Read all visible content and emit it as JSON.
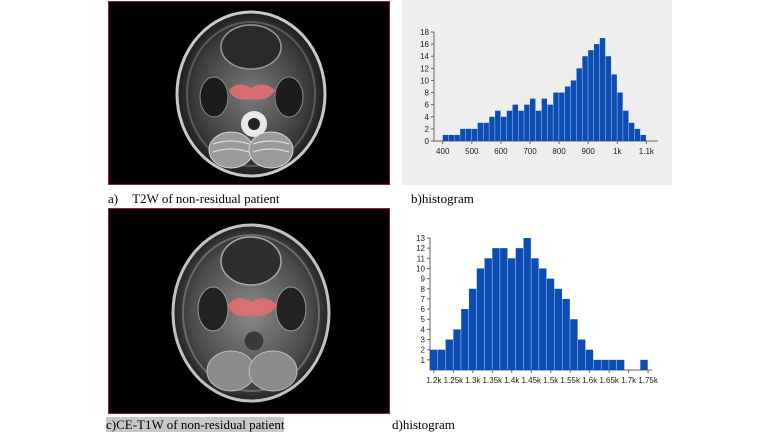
{
  "captions": {
    "a_prefix": "a)",
    "a_text": "T2W of non-residual patient",
    "b": "b)histogram",
    "c": "c)CE-T1W of non-residual patient",
    "d": "d)histogram"
  },
  "colors": {
    "bar": "#0b4db3",
    "roi": "#e87070",
    "frame": "#9b1b2a"
  },
  "chart_data": [
    {
      "type": "bar",
      "title": "",
      "xlabel": "",
      "ylabel": "",
      "xlim": [
        370,
        1140
      ],
      "ylim": [
        0,
        18
      ],
      "x_ticks": [
        "400",
        "500",
        "600",
        "700",
        "800",
        "900",
        "1k",
        "1.1k"
      ],
      "y_ticks": [
        "0",
        "2",
        "4",
        "6",
        "8",
        "10",
        "12",
        "14",
        "16",
        "18"
      ],
      "bin_centers": [
        410,
        430,
        450,
        470,
        490,
        510,
        530,
        550,
        570,
        590,
        610,
        630,
        650,
        670,
        690,
        710,
        730,
        750,
        770,
        790,
        810,
        830,
        850,
        870,
        890,
        910,
        930,
        950,
        970,
        990,
        1010,
        1030,
        1050,
        1070,
        1090
      ],
      "values": [
        1,
        1,
        1,
        2,
        2,
        2,
        3,
        3,
        4,
        5,
        4,
        5,
        6,
        5,
        6,
        7,
        5,
        7,
        6,
        8,
        8,
        9,
        10,
        12,
        14,
        15,
        16,
        17,
        14,
        11,
        8,
        5,
        3,
        2,
        1
      ]
    },
    {
      "type": "bar",
      "title": "",
      "xlabel": "",
      "ylabel": "",
      "xlim": [
        1190,
        1760
      ],
      "ylim": [
        0,
        13
      ],
      "x_ticks": [
        "1.2k",
        "1.25k",
        "1.3k",
        "1.35k",
        "1.4k",
        "1.45k",
        "1.5k",
        "1.55k",
        "1.6k",
        "1.65k",
        "1.7k",
        "1.75k"
      ],
      "y_ticks": [
        "1",
        "2",
        "3",
        "4",
        "5",
        "6",
        "7",
        "8",
        "9",
        "10",
        "11",
        "12",
        "13"
      ],
      "bin_centers": [
        1200,
        1220,
        1240,
        1260,
        1280,
        1300,
        1320,
        1340,
        1360,
        1380,
        1400,
        1420,
        1440,
        1460,
        1480,
        1500,
        1520,
        1540,
        1560,
        1580,
        1600,
        1620,
        1640,
        1660,
        1680,
        1700,
        1720,
        1740
      ],
      "values": [
        2,
        2,
        3,
        4,
        6,
        8,
        10,
        11,
        12,
        12,
        11,
        12,
        13,
        11,
        10,
        9,
        8,
        7,
        5,
        3,
        2,
        1,
        1,
        1,
        1,
        0,
        0,
        1
      ]
    }
  ]
}
